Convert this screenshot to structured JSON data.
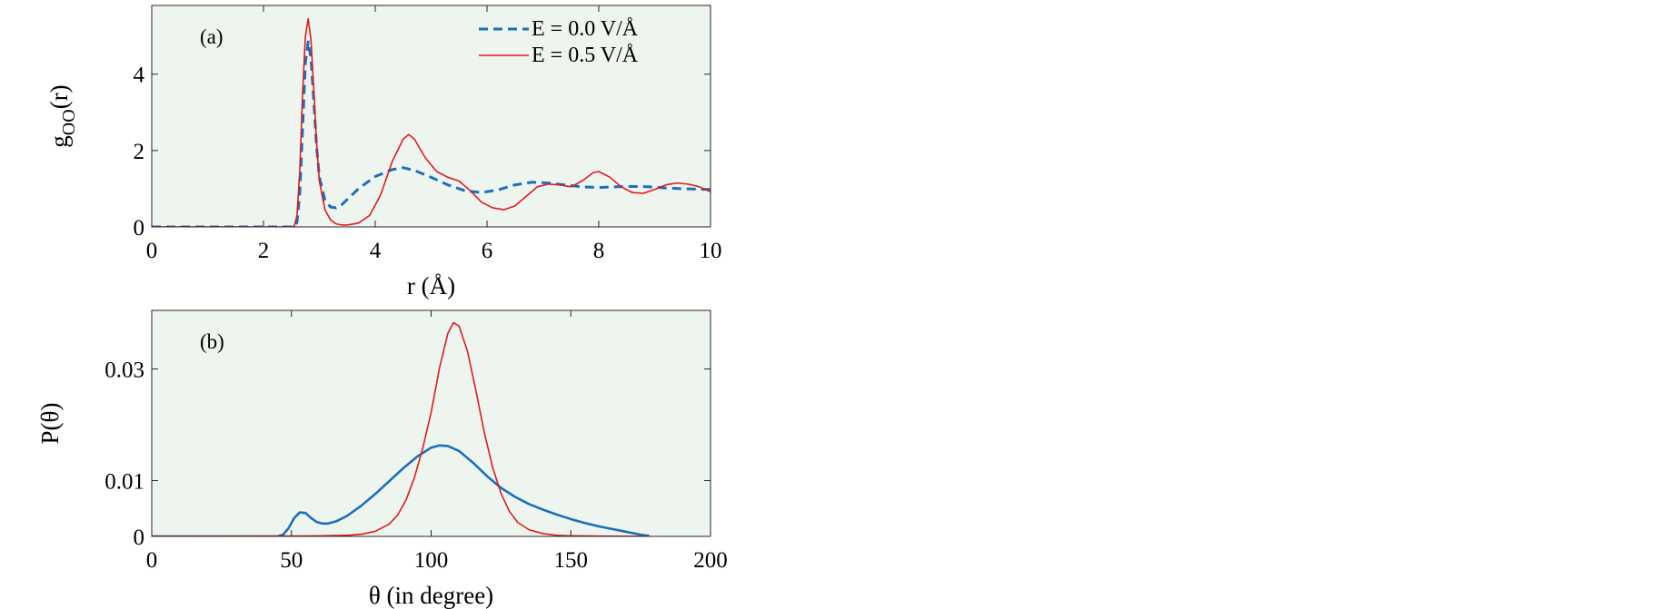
{
  "chart_data": [
    {
      "type": "line",
      "panel_label": "(a)",
      "xlabel": "r (Å)",
      "ylabel": "g_OO(r)",
      "ylabel_main": "g",
      "ylabel_sub": "OO",
      "ylabel_tail": "(r)",
      "xlim": [
        0,
        10
      ],
      "ylim": [
        0,
        5.8
      ],
      "xticks": [
        0,
        2,
        4,
        6,
        8,
        10
      ],
      "yticks": [
        0,
        2,
        4
      ],
      "grid": false,
      "legend_position": "top-right",
      "background": "#eef5ef",
      "series": [
        {
          "name": "E = 0.0 V/Å",
          "color": "#1a6fbf",
          "style": "dashed",
          "x": [
            0,
            2.5,
            2.55,
            2.6,
            2.65,
            2.7,
            2.75,
            2.8,
            2.85,
            2.9,
            2.95,
            3.0,
            3.1,
            3.2,
            3.3,
            3.4,
            3.5,
            3.7,
            4.0,
            4.3,
            4.5,
            4.7,
            5.0,
            5.3,
            5.6,
            5.9,
            6.2,
            6.5,
            6.8,
            7.1,
            7.4,
            7.7,
            8.0,
            8.3,
            8.6,
            8.9,
            9.2,
            9.5,
            10.0
          ],
          "y": [
            0,
            0,
            0.01,
            0.12,
            0.9,
            2.6,
            4.3,
            4.85,
            4.4,
            3.3,
            2.1,
            1.3,
            0.7,
            0.52,
            0.5,
            0.58,
            0.72,
            1.0,
            1.32,
            1.5,
            1.55,
            1.48,
            1.3,
            1.1,
            0.95,
            0.9,
            0.97,
            1.1,
            1.17,
            1.15,
            1.1,
            1.05,
            1.03,
            1.05,
            1.06,
            1.05,
            1.02,
            1.0,
            0.98
          ]
        },
        {
          "name": "E = 0.5 V/Å",
          "color": "#e01b1b",
          "style": "solid",
          "x": [
            0,
            2.5,
            2.55,
            2.6,
            2.65,
            2.7,
            2.75,
            2.8,
            2.85,
            2.9,
            2.95,
            3.0,
            3.1,
            3.2,
            3.3,
            3.4,
            3.5,
            3.7,
            3.9,
            4.1,
            4.3,
            4.5,
            4.6,
            4.7,
            4.9,
            5.1,
            5.3,
            5.5,
            5.7,
            5.9,
            6.1,
            6.3,
            6.5,
            6.7,
            6.9,
            7.1,
            7.3,
            7.5,
            7.7,
            7.9,
            8.0,
            8.2,
            8.4,
            8.6,
            8.8,
            9.0,
            9.2,
            9.4,
            9.6,
            9.8,
            10.0
          ],
          "y": [
            0,
            0,
            0.02,
            0.3,
            1.5,
            3.5,
            5.0,
            5.45,
            4.9,
            3.6,
            2.2,
            1.2,
            0.45,
            0.18,
            0.08,
            0.05,
            0.05,
            0.1,
            0.3,
            0.85,
            1.7,
            2.3,
            2.42,
            2.3,
            1.8,
            1.45,
            1.3,
            1.2,
            0.95,
            0.65,
            0.5,
            0.45,
            0.55,
            0.8,
            1.05,
            1.12,
            1.1,
            1.05,
            1.2,
            1.42,
            1.45,
            1.3,
            1.05,
            0.9,
            0.88,
            0.98,
            1.1,
            1.15,
            1.12,
            1.05,
            0.92
          ]
        }
      ]
    },
    {
      "type": "line",
      "panel_label": "(b)",
      "xlabel": "θ (in degree)",
      "ylabel": "P(θ)",
      "xlim": [
        0,
        200
      ],
      "ylim": [
        0,
        0.0405
      ],
      "xticks": [
        0,
        50,
        100,
        150,
        200
      ],
      "yticks": [
        0,
        0.01,
        0.03
      ],
      "yticklabels": [
        "0",
        "0.01",
        "0.03"
      ],
      "grid": false,
      "background": "#eef5ef",
      "series": [
        {
          "color": "#1a6fbf",
          "style": "solid",
          "x": [
            0,
            45,
            47,
            49,
            51,
            53,
            55,
            57,
            59,
            61,
            63,
            66,
            70,
            75,
            80,
            85,
            90,
            95,
            100,
            103,
            106,
            110,
            115,
            120,
            125,
            130,
            135,
            140,
            145,
            150,
            155,
            160,
            165,
            170,
            175,
            178
          ],
          "y": [
            0,
            0,
            0.0003,
            0.0015,
            0.0033,
            0.0043,
            0.0042,
            0.0033,
            0.0026,
            0.0023,
            0.0023,
            0.0027,
            0.0037,
            0.0055,
            0.0076,
            0.0099,
            0.0122,
            0.0143,
            0.0159,
            0.0163,
            0.0162,
            0.0153,
            0.0132,
            0.0108,
            0.0087,
            0.0071,
            0.0058,
            0.0048,
            0.0039,
            0.0031,
            0.0024,
            0.0018,
            0.0013,
            0.0008,
            0.0003,
            0.0001
          ]
        },
        {
          "color": "#e01b1b",
          "style": "solid",
          "x": [
            0,
            50,
            60,
            70,
            75,
            80,
            85,
            88,
            91,
            94,
            97,
            100,
            103,
            106,
            108,
            110,
            113,
            116,
            119,
            122,
            125,
            128,
            131,
            135,
            140,
            145,
            150,
            160,
            178
          ],
          "y": [
            0,
            5e-05,
            0.0001,
            0.0002,
            0.0004,
            0.0009,
            0.0022,
            0.0038,
            0.0065,
            0.0105,
            0.0158,
            0.0222,
            0.0302,
            0.0364,
            0.0383,
            0.0377,
            0.0332,
            0.0262,
            0.0187,
            0.0124,
            0.0077,
            0.0045,
            0.0025,
            0.0012,
            0.0005,
            0.0002,
            0.0001,
            5e-05,
            0
          ]
        }
      ]
    }
  ]
}
